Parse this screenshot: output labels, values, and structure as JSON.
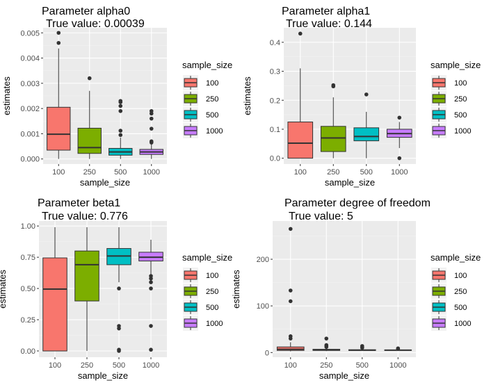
{
  "colors": {
    "panel_bg": "#EBEBEB",
    "grid_major": "#FFFFFF",
    "grid_minor": "#F3F3F3",
    "box_outline": "#333333",
    "outlier": "#333333",
    "legend_key_bg": "#F2F2F2"
  },
  "chart_data": [
    {
      "type": "boxplot",
      "title": "Parameter alpha0",
      "subtitle": "True value:  0.00039",
      "xlabel": "sample_size",
      "ylabel": "estimates",
      "categories": [
        "100",
        "250",
        "500",
        "1000"
      ],
      "ylim": [
        -0.0002,
        0.0052
      ],
      "yticks": [
        0,
        0.001,
        0.002,
        0.003,
        0.004,
        0.005
      ],
      "ytick_labels": [
        "0.000",
        "0.001",
        "0.002",
        "0.003",
        "0.004",
        "0.005"
      ],
      "legend": {
        "title": "sample_size",
        "position": "right",
        "labels": [
          "100",
          "250",
          "500",
          "1000"
        ]
      },
      "boxes": [
        {
          "category": "100",
          "color": "#F8766D",
          "min": 0.0,
          "q1": 0.00035,
          "median": 0.00098,
          "q3": 0.00205,
          "max": 0.00438,
          "outliers": [
            0.0046,
            0.005
          ]
        },
        {
          "category": "250",
          "color": "#7CAE00",
          "min": 0.0,
          "q1": 0.00022,
          "median": 0.00045,
          "q3": 0.00122,
          "max": 0.0027,
          "outliers": [
            0.0032
          ]
        },
        {
          "category": "500",
          "color": "#00BFC4",
          "min": 0.0,
          "q1": 0.00015,
          "median": 0.00028,
          "q3": 0.00042,
          "max": 0.00085,
          "outliers": [
            0.00095,
            0.00112,
            0.0019,
            0.0021,
            0.00225,
            0.0023
          ]
        },
        {
          "category": "1000",
          "color": "#C77CFF",
          "min": 0.0,
          "q1": 0.00018,
          "median": 0.00028,
          "q3": 0.00038,
          "max": 0.0006,
          "outliers": [
            0.00065,
            0.0007,
            0.0012,
            0.0016,
            0.0018,
            0.0019
          ]
        }
      ]
    },
    {
      "type": "boxplot",
      "title": "Parameter alpha1",
      "subtitle": "True value:  0.144",
      "xlabel": "sample_size",
      "ylabel": "estimates",
      "categories": [
        "100",
        "250",
        "500",
        "1000"
      ],
      "ylim": [
        -0.02,
        0.45
      ],
      "yticks": [
        0,
        0.1,
        0.2,
        0.3,
        0.4
      ],
      "ytick_labels": [
        "0.0",
        "0.1",
        "0.2",
        "0.3",
        "0.4"
      ],
      "legend": {
        "title": "sample_size",
        "position": "right",
        "labels": [
          "100",
          "250",
          "500",
          "1000"
        ]
      },
      "boxes": [
        {
          "category": "100",
          "color": "#F8766D",
          "min": 0.0,
          "q1": 0.0,
          "median": 0.052,
          "q3": 0.125,
          "max": 0.31,
          "outliers": [
            0.43
          ]
        },
        {
          "category": "250",
          "color": "#7CAE00",
          "min": 0.0,
          "q1": 0.023,
          "median": 0.07,
          "q3": 0.11,
          "max": 0.21,
          "outliers": [
            0.248,
            0.252
          ]
        },
        {
          "category": "500",
          "color": "#00BFC4",
          "min": 0.0,
          "q1": 0.06,
          "median": 0.075,
          "q3": 0.105,
          "max": 0.16,
          "outliers": [
            0.22
          ]
        },
        {
          "category": "1000",
          "color": "#C77CFF",
          "min": 0.035,
          "q1": 0.072,
          "median": 0.085,
          "q3": 0.1,
          "max": 0.125,
          "outliers": [
            0.14,
            0.0
          ]
        }
      ]
    },
    {
      "type": "boxplot",
      "title": "Parameter beta1",
      "subtitle": "True value:  0.776",
      "xlabel": "sample_size",
      "ylabel": "estimates",
      "categories": [
        "100",
        "250",
        "500",
        "1000"
      ],
      "ylim": [
        -0.05,
        1.04
      ],
      "yticks": [
        0,
        0.25,
        0.5,
        0.75,
        1.0
      ],
      "ytick_labels": [
        "0.00",
        "0.25",
        "0.50",
        "0.75",
        "1.00"
      ],
      "legend": {
        "title": "sample_size",
        "position": "right",
        "labels": [
          "100",
          "250",
          "500",
          "1000"
        ]
      },
      "boxes": [
        {
          "category": "100",
          "color": "#F8766D",
          "min": 0.0,
          "q1": 0.0,
          "median": 0.495,
          "q3": 0.745,
          "max": 0.99,
          "outliers": []
        },
        {
          "category": "250",
          "color": "#7CAE00",
          "min": 0.0,
          "q1": 0.4,
          "median": 0.69,
          "q3": 0.8,
          "max": 0.99,
          "outliers": []
        },
        {
          "category": "500",
          "color": "#00BFC4",
          "min": 0.55,
          "q1": 0.69,
          "median": 0.76,
          "q3": 0.82,
          "max": 0.99,
          "outliers": [
            0.5,
            0.2,
            0.18,
            0.01,
            0.0
          ]
        },
        {
          "category": "1000",
          "color": "#C77CFF",
          "min": 0.6,
          "q1": 0.72,
          "median": 0.75,
          "q3": 0.79,
          "max": 0.89,
          "outliers": [
            0.6,
            0.58,
            0.55,
            0.5,
            0.2,
            0.01
          ]
        }
      ]
    },
    {
      "type": "boxplot",
      "title": "Parameter degree of freedom",
      "subtitle": "True value:  5",
      "xlabel": "sample_size",
      "ylabel": "estimates",
      "categories": [
        "100",
        "250",
        "500",
        "1000"
      ],
      "ylim": [
        -10,
        282
      ],
      "yticks": [
        0,
        100,
        200
      ],
      "ytick_labels": [
        "0",
        "100",
        "200"
      ],
      "legend": {
        "title": "sample_size",
        "position": "right",
        "labels": [
          "100",
          "250",
          "500",
          "1000"
        ]
      },
      "boxes": [
        {
          "category": "100",
          "color": "#F8766D",
          "min": 2.5,
          "q1": 4.5,
          "median": 7,
          "q3": 12,
          "max": 22,
          "outliers": [
            30,
            35,
            110,
            133,
            265
          ]
        },
        {
          "category": "250",
          "color": "#7CAE00",
          "min": 3,
          "q1": 4.5,
          "median": 5.5,
          "q3": 7,
          "max": 10,
          "outliers": [
            12,
            14,
            16,
            30
          ]
        },
        {
          "category": "500",
          "color": "#00BFC4",
          "min": 3.5,
          "q1": 4.5,
          "median": 5,
          "q3": 6,
          "max": 8,
          "outliers": [
            10,
            12,
            14
          ]
        },
        {
          "category": "1000",
          "color": "#C77CFF",
          "min": 4,
          "q1": 4.7,
          "median": 5,
          "q3": 5.5,
          "max": 6.5,
          "outliers": [
            7.5,
            9
          ]
        }
      ]
    }
  ]
}
